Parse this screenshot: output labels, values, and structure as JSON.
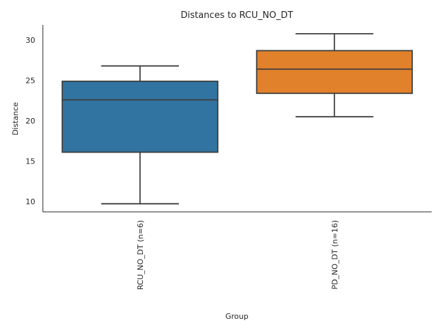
{
  "chart_data": {
    "type": "boxplot",
    "title": "Distances to RCU_NO_DT",
    "xlabel": "Group",
    "ylabel": "Distance",
    "categories": [
      "RCU_NO_DT (n=6)",
      "PD_NO_DT (n=16)"
    ],
    "ylim": [
      8.7,
      31.9
    ],
    "yticks": [
      10,
      15,
      20,
      25,
      30
    ],
    "grid": false,
    "boxes": [
      {
        "category": "RCU_NO_DT (n=6)",
        "whisker_low": 9.7,
        "q1": 16.1,
        "median": 22.6,
        "q3": 24.9,
        "whisker_high": 26.8,
        "color": "#3274a1"
      },
      {
        "category": "PD_NO_DT (n=16)",
        "whisker_low": 20.5,
        "q1": 23.4,
        "median": 26.4,
        "q3": 28.7,
        "whisker_high": 30.8,
        "color": "#e1812c"
      }
    ],
    "line_color": "#3d3d3d"
  }
}
